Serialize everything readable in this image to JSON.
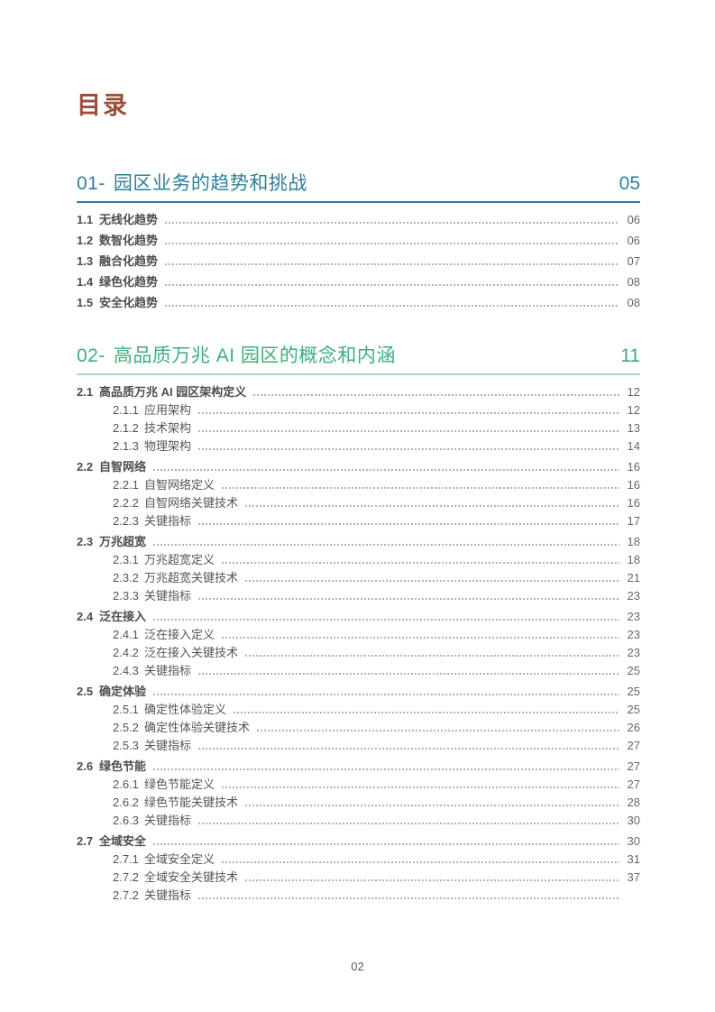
{
  "page": {
    "title": "目录",
    "footer_page_number": "02"
  },
  "colors": {
    "title_color": "#9B4E3C",
    "section1_accent": "#2F7F9B",
    "section1_rule": "#2F7F9B",
    "section2_accent": "#3DAE7B",
    "section2_rule": "#A9D9C3",
    "item_text": "#4D4D4D",
    "item_page_number_text": "#666666",
    "leader_dots": "#9A9A9A"
  },
  "sections": [
    {
      "number": "01-",
      "title": "园区业务的趋势和挑战",
      "page": "05",
      "accent": "#2F7F9B",
      "rule_color": "#2F7F9B",
      "items": [
        {
          "num": "1.1",
          "title": "无线化趋势",
          "page": "06",
          "level": 1
        },
        {
          "num": "1.2",
          "title": "数智化趋势",
          "page": "06",
          "level": 1
        },
        {
          "num": "1.3",
          "title": "融合化趋势",
          "page": "07",
          "level": 1
        },
        {
          "num": "1.4",
          "title": "绿色化趋势",
          "page": "08",
          "level": 1
        },
        {
          "num": "1.5",
          "title": "安全化趋势",
          "page": "08",
          "level": 1
        }
      ]
    },
    {
      "number": "02-",
      "title": "高品质万兆 AI 园区的概念和内涵",
      "page": "11",
      "accent": "#3DAE7B",
      "rule_color": "#A9D9C3",
      "items": [
        {
          "num": "2.1",
          "title": "高品质万兆 AI 园区架构定义",
          "page": "12",
          "level": 1
        },
        {
          "num": "2.1.1",
          "title": "应用架构",
          "page": "12",
          "level": 2
        },
        {
          "num": "2.1.2",
          "title": "技术架构",
          "page": "13",
          "level": 2
        },
        {
          "num": "2.1.3",
          "title": "物理架构",
          "page": "14",
          "level": 2
        },
        {
          "num": "2.2",
          "title": "自智网络",
          "page": "16",
          "level": 1
        },
        {
          "num": "2.2.1",
          "title": "自智网络定义",
          "page": "16",
          "level": 2
        },
        {
          "num": "2.2.2",
          "title": "自智网络关键技术",
          "page": "16",
          "level": 2
        },
        {
          "num": "2.2.3",
          "title": "关键指标",
          "page": "17",
          "level": 2
        },
        {
          "num": "2.3",
          "title": "万兆超宽",
          "page": "18",
          "level": 1
        },
        {
          "num": "2.3.1",
          "title": "万兆超宽定义",
          "page": "18",
          "level": 2
        },
        {
          "num": "2.3.2",
          "title": "万兆超宽关键技术",
          "page": "21",
          "level": 2
        },
        {
          "num": "2.3.3",
          "title": "关键指标",
          "page": "23",
          "level": 2
        },
        {
          "num": "2.4",
          "title": "泛在接入",
          "page": "23",
          "level": 1
        },
        {
          "num": "2.4.1",
          "title": "泛在接入定义",
          "page": "23",
          "level": 2
        },
        {
          "num": "2.4.2",
          "title": "泛在接入关键技术",
          "page": "23",
          "level": 2
        },
        {
          "num": "2.4.3",
          "title": "关键指标",
          "page": "25",
          "level": 2
        },
        {
          "num": "2.5",
          "title": "确定体验",
          "page": "25",
          "level": 1
        },
        {
          "num": "2.5.1",
          "title": "确定性体验定义",
          "page": "25",
          "level": 2
        },
        {
          "num": "2.5.2",
          "title": "确定性体验关键技术",
          "page": "26",
          "level": 2
        },
        {
          "num": "2.5.3",
          "title": "关键指标",
          "page": "27",
          "level": 2
        },
        {
          "num": "2.6",
          "title": "绿色节能",
          "page": "27",
          "level": 1
        },
        {
          "num": "2.6.1",
          "title": "绿色节能定义",
          "page": "27",
          "level": 2
        },
        {
          "num": "2.6.2",
          "title": "绿色节能关键技术",
          "page": "28",
          "level": 2
        },
        {
          "num": "2.6.3",
          "title": "关键指标",
          "page": "30",
          "level": 2
        },
        {
          "num": "2.7",
          "title": "全域安全",
          "page": "30",
          "level": 1
        },
        {
          "num": "2.7.1",
          "title": "全域安全定义",
          "page": "31",
          "level": 2
        },
        {
          "num": "2.7.2",
          "title": "全域安全关键技术",
          "page": "37",
          "level": 2
        },
        {
          "num": "2.7.2",
          "title": "关键指标",
          "page": "",
          "level": 2
        }
      ]
    }
  ]
}
